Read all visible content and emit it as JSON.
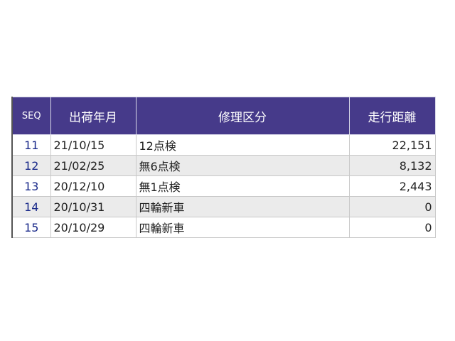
{
  "table": {
    "headers": [
      "SEQ",
      "出荷年月",
      "修理区分",
      "走行距離"
    ],
    "rows": [
      {
        "seq": "11",
        "date": "21/10/15",
        "type": "12点検",
        "distance": "22,151"
      },
      {
        "seq": "12",
        "date": "21/02/25",
        "type": "無6点検",
        "distance": "8,132"
      },
      {
        "seq": "13",
        "date": "20/12/10",
        "type": "無1点検",
        "distance": "2,443"
      },
      {
        "seq": "14",
        "date": "20/10/31",
        "type": "四輪新車",
        "distance": "0"
      },
      {
        "seq": "15",
        "date": "20/10/29",
        "type": "四輪新車",
        "distance": "0"
      }
    ]
  },
  "colors": {
    "header_bg": "#463a8a",
    "alt_row": "#ebebeb",
    "seq_text": "#1a2a8a"
  }
}
